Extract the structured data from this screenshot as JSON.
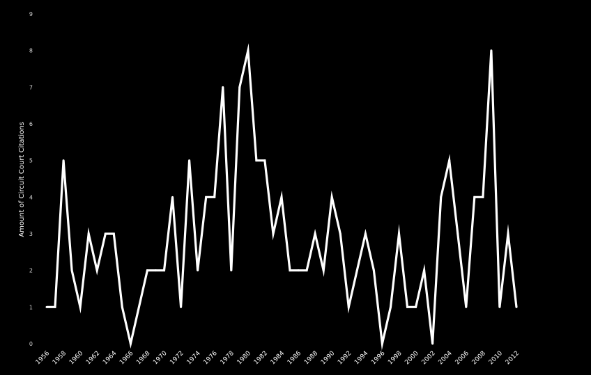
{
  "chart_data": {
    "type": "line",
    "title": "",
    "xlabel": "",
    "ylabel": "Amount of Circuit Court Citations",
    "ylim": [
      0,
      9
    ],
    "xlim": [
      1956,
      2012
    ],
    "grid": false,
    "legend": "none",
    "colors": {
      "background": "#000000",
      "line": "#ffffff",
      "text": "#ffffff"
    },
    "y_ticks": [
      "0",
      "1",
      "2",
      "3",
      "4",
      "5",
      "6",
      "7",
      "8",
      "9"
    ],
    "x_tick_labels": [
      "1956",
      "1958",
      "1960",
      "1962",
      "1964",
      "1966",
      "1968",
      "1970",
      "1972",
      "1974",
      "1976",
      "1978",
      "1980",
      "1982",
      "1984",
      "1986",
      "1988",
      "1990",
      "1992",
      "1994",
      "1996",
      "1998",
      "2000",
      "2002",
      "2004",
      "2006",
      "2008",
      "2010",
      "2012"
    ],
    "x": [
      1956,
      1957,
      1958,
      1959,
      1960,
      1961,
      1962,
      1963,
      1964,
      1965,
      1966,
      1967,
      1968,
      1969,
      1970,
      1971,
      1972,
      1973,
      1974,
      1975,
      1976,
      1977,
      1978,
      1979,
      1980,
      1981,
      1982,
      1983,
      1984,
      1985,
      1986,
      1987,
      1988,
      1989,
      1990,
      1991,
      1992,
      1993,
      1994,
      1995,
      1996,
      1997,
      1998,
      1999,
      2000,
      2001,
      2002,
      2003,
      2004,
      2005,
      2006,
      2007,
      2008,
      2009,
      2010,
      2011,
      2012
    ],
    "series": [
      {
        "values": [
          1,
          1,
          5,
          2,
          1,
          3,
          2,
          3,
          3,
          1,
          0,
          1,
          2,
          2,
          2,
          4,
          1,
          5,
          2,
          4,
          4,
          7,
          2,
          7,
          8,
          5,
          5,
          3,
          4,
          2,
          2,
          2,
          3,
          2,
          4,
          3,
          1,
          2,
          3,
          2,
          0,
          1,
          3,
          1,
          1,
          2,
          0,
          4,
          5,
          3,
          1,
          4,
          4,
          8,
          1,
          3,
          1
        ]
      }
    ]
  }
}
